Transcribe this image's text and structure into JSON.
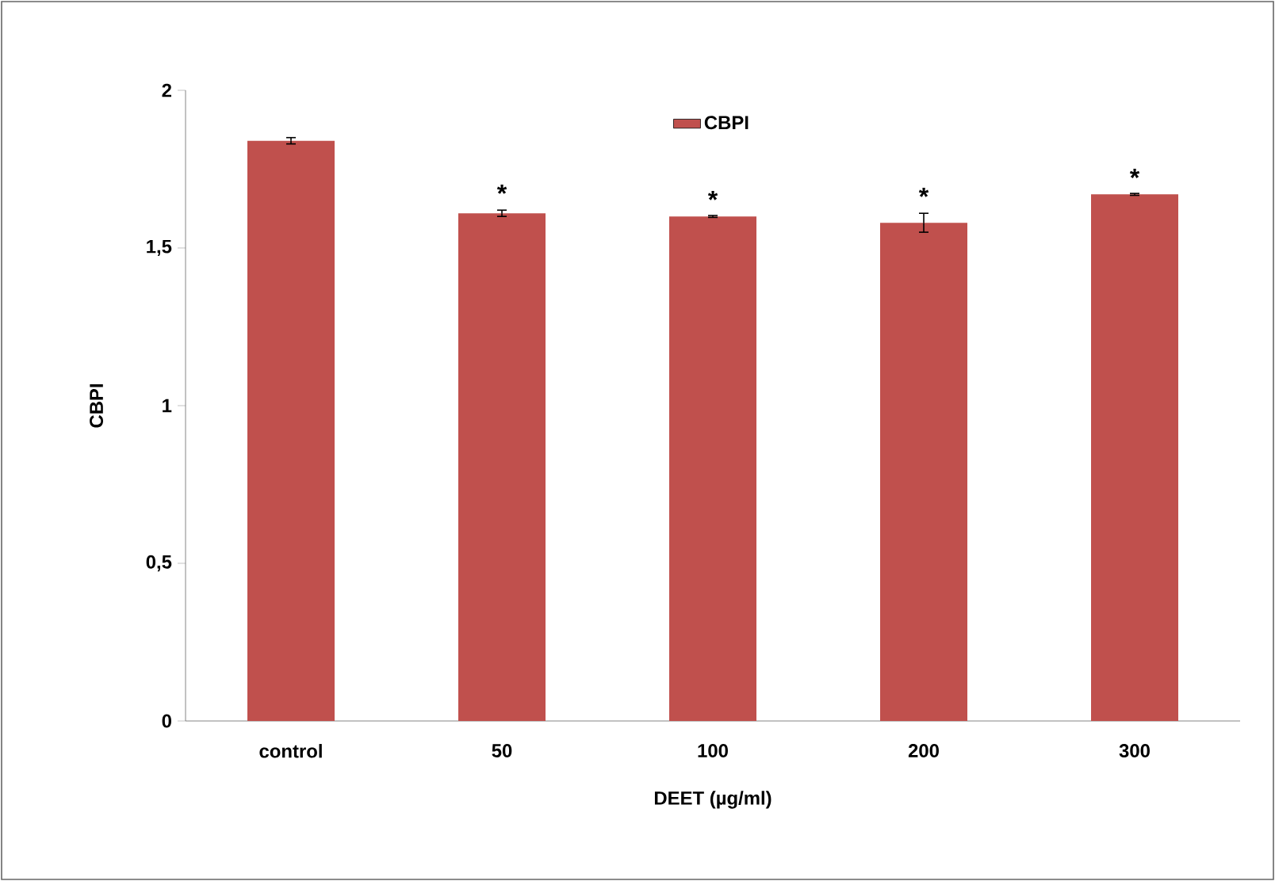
{
  "chart_data": {
    "type": "bar",
    "xlabel": "DEET (µg/ml)",
    "ylabel": "CBPI",
    "categories": [
      "control",
      "50",
      "100",
      "200",
      "300"
    ],
    "series": [
      {
        "name": "CBPI",
        "color": "#c0504d",
        "values": [
          1.84,
          1.61,
          1.6,
          1.58,
          1.67
        ],
        "errors": [
          0.01,
          0.01,
          0.003,
          0.03,
          0.003
        ]
      }
    ],
    "ylim": [
      0,
      2
    ],
    "yticks": [
      0,
      {
        "value": 0.5,
        "label": "0,5"
      },
      1,
      {
        "value": 1.5,
        "label": "1,5"
      },
      2
    ],
    "annotations": [
      {
        "text": "*",
        "x": "50",
        "y": 1.64
      },
      {
        "text": "*",
        "x": "100",
        "y": 1.62
      },
      {
        "text": "*",
        "x": "200",
        "y": 1.63
      },
      {
        "text": "*",
        "x": "300",
        "y": 1.69
      }
    ],
    "legend": "top",
    "grid": false
  }
}
